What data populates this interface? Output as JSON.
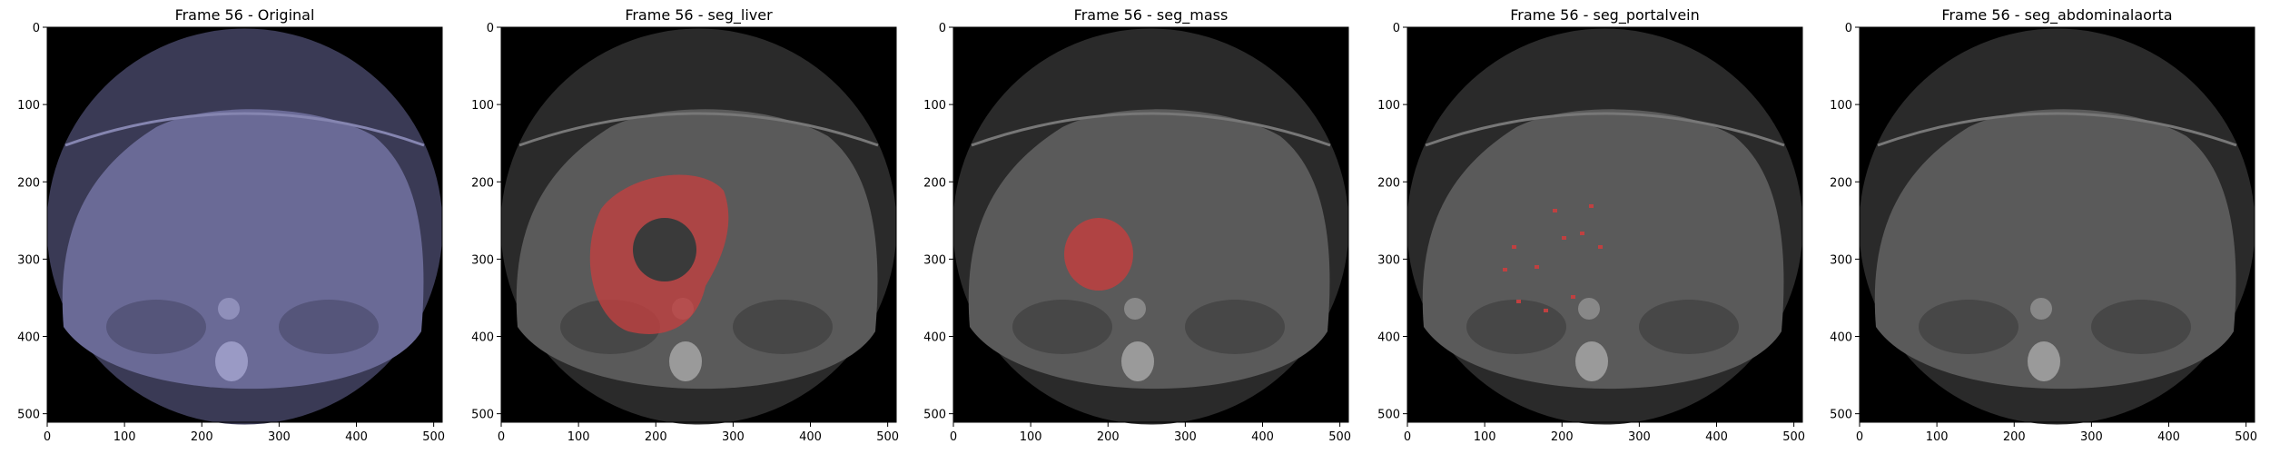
{
  "panels": [
    {
      "title": "Frame 56 - Original",
      "overlay": "none",
      "tint": "#6a6a96"
    },
    {
      "title": "Frame 56 - seg_liver",
      "overlay": "liver",
      "tint": "#606060"
    },
    {
      "title": "Frame 56 - seg_mass",
      "overlay": "mass",
      "tint": "#606060"
    },
    {
      "title": "Frame 56 - seg_portalvein",
      "overlay": "portalvein",
      "tint": "#606060"
    },
    {
      "title": "Frame 56 - seg_abdominalaorta",
      "overlay": "none",
      "tint": "#606060"
    }
  ],
  "axes": {
    "xticks": [
      "0",
      "100",
      "200",
      "300",
      "400",
      "500"
    ],
    "yticks": [
      "0",
      "100",
      "200",
      "300",
      "400",
      "500"
    ],
    "xtick_values": [
      0,
      100,
      200,
      300,
      400,
      500
    ],
    "ytick_values": [
      0,
      100,
      200,
      300,
      400,
      500
    ],
    "xlim": [
      0,
      511
    ],
    "ylim": [
      511,
      0
    ]
  },
  "colors": {
    "overlay_red": "#c04040",
    "background": "#000000"
  }
}
